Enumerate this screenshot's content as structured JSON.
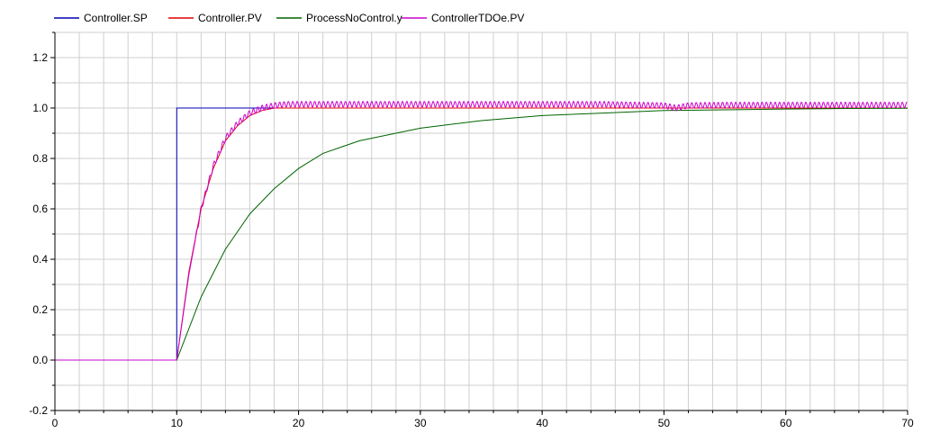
{
  "chart_data": {
    "type": "line",
    "title": "",
    "xlabel": "",
    "ylabel": "",
    "xlim": [
      0,
      70
    ],
    "ylim": [
      -0.2,
      1.3
    ],
    "grid": true,
    "legend_position": "top-left",
    "x_ticks": [
      "0",
      "10",
      "20",
      "30",
      "40",
      "50",
      "60",
      "70"
    ],
    "y_ticks": [
      "-0.2",
      "0.0",
      "0.2",
      "0.4",
      "0.6",
      "0.8",
      "1.0",
      "1.2"
    ],
    "series": [
      {
        "name": "Controller.SP",
        "color": "#0000b3",
        "x": [
          0,
          10,
          10,
          70
        ],
        "y": [
          0,
          0,
          1,
          1
        ]
      },
      {
        "name": "Controller.PV",
        "color": "#e00000",
        "x": [
          0,
          10,
          11,
          12,
          13,
          14,
          15,
          16,
          17,
          18,
          19,
          20,
          22,
          25,
          30,
          35,
          40,
          45,
          50,
          55,
          60,
          65,
          70
        ],
        "y": [
          0,
          0,
          0.35,
          0.6,
          0.76,
          0.87,
          0.93,
          0.97,
          0.99,
          1.0,
          1.0,
          1.0,
          1.0,
          1.0,
          1.0,
          1.0,
          1.0,
          1.0,
          1.0,
          1.0,
          1.0,
          1.0,
          1.0
        ]
      },
      {
        "name": "ProcessNoControl.y",
        "color": "#006400",
        "x": [
          0,
          10,
          12,
          14,
          16,
          18,
          20,
          22,
          25,
          30,
          35,
          40,
          45,
          50,
          55,
          60,
          65,
          70
        ],
        "y": [
          0,
          0,
          0.25,
          0.44,
          0.58,
          0.68,
          0.76,
          0.82,
          0.87,
          0.92,
          0.95,
          0.97,
          0.98,
          0.99,
          0.993,
          0.996,
          0.998,
          0.999
        ]
      },
      {
        "name": "ControllerTDOe.PV",
        "color": "#cc00cc",
        "x": [
          0,
          10,
          11,
          12,
          13,
          14,
          15,
          16,
          17,
          18,
          19,
          20,
          22,
          25,
          30,
          35,
          40,
          45,
          50,
          51,
          52,
          55,
          60,
          65,
          70
        ],
        "y": [
          0,
          0,
          0.34,
          0.6,
          0.77,
          0.88,
          0.94,
          0.98,
          1.0,
          1.01,
          1.015,
          1.015,
          1.015,
          1.015,
          1.015,
          1.015,
          1.015,
          1.015,
          1.01,
          1.0,
          1.01,
          1.012,
          1.012,
          1.012,
          1.012
        ],
        "oscillation_amplitude": 0.012
      }
    ]
  }
}
